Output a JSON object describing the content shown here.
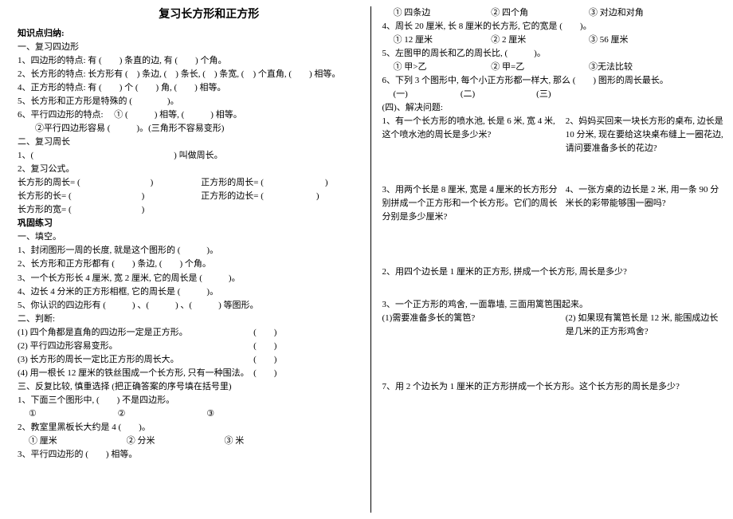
{
  "title": "复习长方形和正方形",
  "left": {
    "h1": "知识点归纳:",
    "s1": "一、复习四边形",
    "l1": "1、四边形的特点: 有 (　　) 条直的边, 有 (　　) 个角。",
    "l2": "2、长方形的特点: 长方形有 (　) 条边, (　) 条长, (　) 条宽, (　) 个直角, (　　) 相等。",
    "l3": "4、正方形的特点: 有 (　　) 个 (　　) 角, (　　) 相等。",
    "l4": "5、长方形和正方形是特殊的 (　　　　)。",
    "l5": "6、平行四边形的特点: 　① (　　　) 相等,  (　　　) 相等。",
    "l6": "　　②平行四边形容易 (　　　)。(三角形不容易变形)",
    "s2": "二、复习周长",
    "l7": "1、(　　　　　　　　　　　　　　　　) 叫做周长。",
    "l8": "2、复习公式。",
    "f1a": "长方形的周长= (　　　　　　　　)",
    "f1b": "正方形的周长= (　　　　　　　)",
    "f2a": "长方形的长= (　　　　　　　　)",
    "f2b": "正方形的边长= (　　　　　　)",
    "f3": "长方形的宽= (　　　　　　　　)",
    "h2": "巩固练习",
    "s3": "一、填空。",
    "p1": "1、封闭图形一周的长度, 就是这个图形的 (　　　)。",
    "p2": "2、长方形和正方形都有 (　　) 条边, (　　) 个角。",
    "p3": "3、一个长方形长 4 厘米, 宽 2 厘米, 它的周长是 (　　　)。",
    "p4": "4、边长 4 分米的正方形相框, 它的周长是 (　　　)。",
    "p5": "5、你认识的四边形有 (　　　) 、(　　　) 、(　　　) 等图形。",
    "s4": "二、判断:",
    "j1": "(1) 四个角都是直角的四边形一定是正方形。　　　　　　　　(　　)",
    "j2": "(2) 平行四边形容易变形。　　　　　　　　　　　　　　　　(　　)",
    "j3": "(3) 长方形的周长一定比正方形的周长大。　　　　　　　　　(　　)",
    "j4": "(4) 用一根长 12 厘米的铁丝围成一个长方形, 只有一种围法。　(　　)",
    "s5": "三、反复比较, 慎重选择 (把正确答案的序号填在括号里)",
    "q1": "1、下面三个图形中, (　　) 不是四边形。",
    "q1c": "① 　　　　　　　　　② 　　　　　　　　　③",
    "q2": "2、教室里黑板长大约是 4 (　　)。",
    "q2a": "① 厘米",
    "q2b": "② 分米",
    "q2c": "③ 米",
    "q3": "3、平行四边形的 (　　) 相等。"
  },
  "right": {
    "q3a": "① 四条边",
    "q3b": "② 四个角",
    "q3c": "③ 对边和对角",
    "q4": "4、周长 20 厘米, 长 8 厘米的长方形, 它的宽是 (　　)。",
    "q4a": "① 12 厘米",
    "q4b": "② 2 厘米",
    "q4c": "③ 56 厘米",
    "q5": "5、左图甲的周长和乙的周长比, (　　　)。",
    "q5a": "① 甲>乙",
    "q5b": "② 甲=乙",
    "q5c": "③无法比较",
    "q6": "6、下列 3 个图形中, 每个小正方形都一样大, 那么 (　　) 图形的周长最长。",
    "q6c": "(一)　　　　　　(二)　　　　　　　(三)",
    "s6": "(四)、解决问题:",
    "w1a": "1、有一个长方形的喷水池, 长是 6 米, 宽 4 米, 这个喷水池的周长是多少米?",
    "w1b": "2、妈妈买回来一块长方形的桌布, 边长是 10 分米, 现在要给这块桌布缝上一圈花边, 请问要准备多长的花边?",
    "w2a": "3、用两个长是 8 厘米, 宽是 4 厘米的长方形分别拼成一个正方形和一个长方形。它们的周长分别是多少厘米?",
    "w2b": "4、一张方桌的边长是 2 米, 用一条 90 分米长的彩带能够围一圈吗?",
    "w3": "2、用四个边长是 1 厘米的正方形, 拼成一个长方形, 周长是多少?",
    "w4": "3、一个正方形的鸡舍, 一面靠墙, 三面用篱笆围起来。",
    "w4a": "(1)需要准备多长的篱笆?",
    "w4b": "(2) 如果现有篱笆长是 12 米, 能围成边长是几米的正方形鸡舍?",
    "w5": "7、用 2 个边长为 1 厘米的正方形拼成一个长方形。这个长方形的周长是多少?"
  }
}
